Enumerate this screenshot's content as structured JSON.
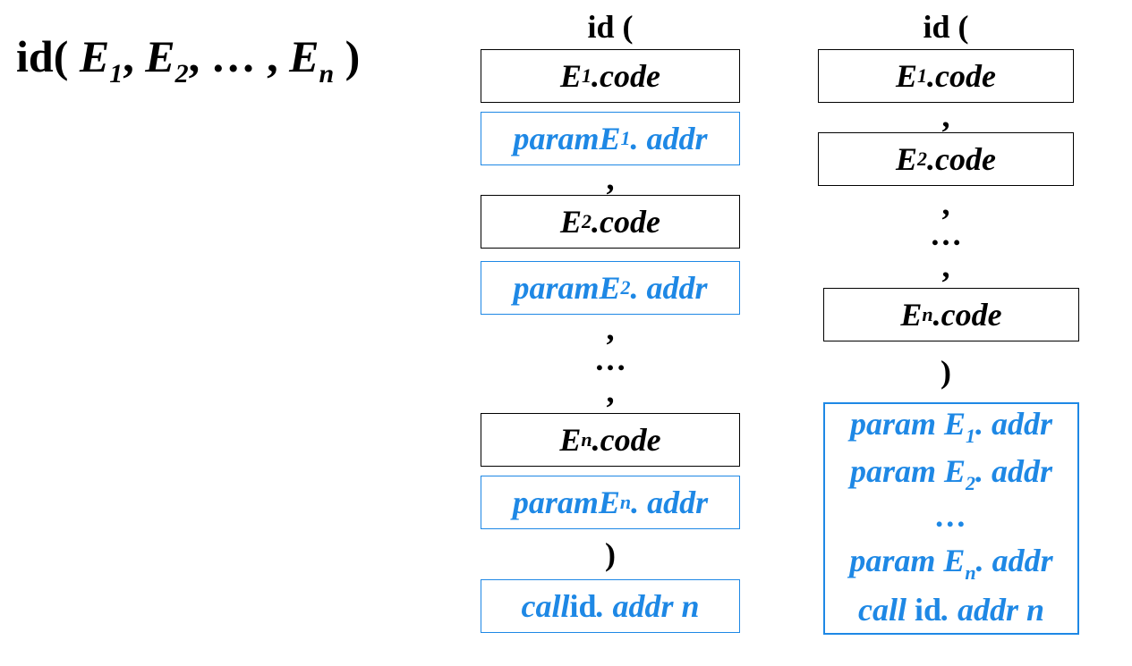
{
  "heading": {
    "prefix": "id(",
    "e": "E",
    "sub1": "1",
    "sub2": "2",
    "subn": "n",
    "comma": ",",
    "ellipsis": "…",
    "close": ")"
  },
  "left_column": {
    "top_label": "id (",
    "e1_code_e": "E",
    "e1_code_sub": "1",
    "e1_code_rest": ".code",
    "p1_param": "param ",
    "p1_e": "E",
    "p1_sub": "1",
    "p1_rest": ". addr",
    "comma1": ",",
    "e2_code_e": "E",
    "e2_code_sub": "2",
    "e2_code_rest": ".code",
    "p2_param": "param ",
    "p2_e": "E",
    "p2_sub": "2",
    "p2_rest": ". addr",
    "comma2": ",",
    "dots": "…",
    "comma3": ",",
    "en_code_e": "E",
    "en_code_sub": "n",
    "en_code_rest": ".code",
    "pn_param": "param ",
    "pn_e": "E",
    "pn_sub": "n",
    "pn_rest": ". addr",
    "close_paren": ")",
    "call_kw": "call ",
    "call_id": "id",
    "call_rest": ". addr  n"
  },
  "right_column": {
    "top_label": "id (",
    "e1_code_e": "E",
    "e1_code_sub": "1",
    "e1_code_rest": ".code",
    "comma1": ",",
    "e2_code_e": "E",
    "e2_code_sub": "2",
    "e2_code_rest": ".code",
    "comma2": ",",
    "dots": "…",
    "comma3": ",",
    "en_code_e": "E",
    "en_code_sub": "n",
    "en_code_rest": ".code",
    "close_paren": ")",
    "block": {
      "l1_param": "param ",
      "l1_e": "E",
      "l1_sub": "1",
      "l1_rest": ". addr",
      "l2_param": "param ",
      "l2_e": "E",
      "l2_sub": "2",
      "l2_rest": ". addr",
      "l3_dots": "…",
      "l4_param": "param ",
      "l4_e": "E",
      "l4_sub": "n",
      "l4_rest": ". addr",
      "l5_call": "call ",
      "l5_id": "id",
      "l5_rest": ". addr  n"
    }
  },
  "colors": {
    "code_border": "#000000",
    "param_blue": "#1e88e5"
  }
}
